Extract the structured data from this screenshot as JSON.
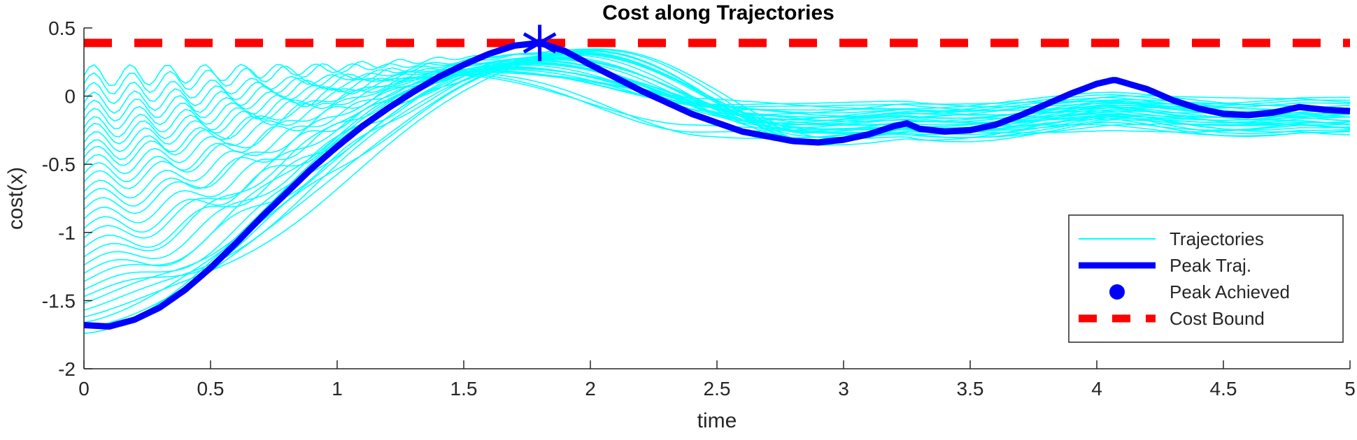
{
  "chart_data": {
    "type": "line",
    "title": "Cost along Trajectories",
    "xlabel": "time",
    "ylabel": "cost(x)",
    "xlim": [
      0,
      5
    ],
    "ylim": [
      -2,
      0.5
    ],
    "xticks": [
      0,
      0.5,
      1,
      1.5,
      2,
      2.5,
      3,
      3.5,
      4,
      4.5,
      5
    ],
    "xtick_labels": [
      "0",
      "0.5",
      "1",
      "1.5",
      "2",
      "2.5",
      "3",
      "3.5",
      "4",
      "4.5",
      "5"
    ],
    "yticks": [
      -2,
      -1.5,
      -1,
      -0.5,
      0,
      0.5
    ],
    "ytick_labels": [
      "-2",
      "-1.5",
      "-1",
      "-0.5",
      "0",
      "0.5"
    ],
    "grid": false,
    "legend_position": "bottom-right",
    "legend": [
      "Trajectories",
      "Peak Traj.",
      "Peak Achieved",
      "Cost Bound"
    ],
    "colors": {
      "trajectories": "#00ffff",
      "peak_traj": "#0000ff",
      "peak_achieved": "#0000ff",
      "cost_bound": "#ff0000"
    },
    "cost_bound": 0.39,
    "peak_achieved": {
      "x": 1.8,
      "y": 0.39
    },
    "peak_traj": {
      "x": [
        0,
        0.1,
        0.2,
        0.3,
        0.4,
        0.5,
        0.6,
        0.7,
        0.8,
        0.9,
        1.0,
        1.1,
        1.2,
        1.3,
        1.4,
        1.5,
        1.6,
        1.7,
        1.8,
        1.9,
        2.0,
        2.2,
        2.4,
        2.6,
        2.8,
        2.9,
        3.0,
        3.1,
        3.2,
        3.25,
        3.3,
        3.4,
        3.5,
        3.6,
        3.7,
        3.8,
        3.9,
        4.0,
        4.07,
        4.2,
        4.3,
        4.4,
        4.5,
        4.6,
        4.7,
        4.8,
        4.9,
        5.0
      ],
      "y": [
        -1.68,
        -1.69,
        -1.64,
        -1.55,
        -1.42,
        -1.26,
        -1.08,
        -0.89,
        -0.71,
        -0.53,
        -0.37,
        -0.22,
        -0.09,
        0.03,
        0.14,
        0.23,
        0.31,
        0.37,
        0.39,
        0.33,
        0.23,
        0.04,
        -0.13,
        -0.26,
        -0.33,
        -0.34,
        -0.32,
        -0.28,
        -0.22,
        -0.2,
        -0.24,
        -0.26,
        -0.25,
        -0.21,
        -0.14,
        -0.06,
        0.02,
        0.09,
        0.12,
        0.05,
        -0.03,
        -0.09,
        -0.13,
        -0.14,
        -0.12,
        -0.08,
        -0.1,
        -0.11
      ]
    },
    "trajectories_y_start": [
      -1.74,
      -1.7,
      -1.66,
      -1.62,
      -1.57,
      -1.52,
      -1.47,
      -1.42,
      -1.36,
      -1.3,
      -1.24,
      -1.18,
      -1.11,
      -1.04,
      -0.97,
      -0.9,
      -0.83,
      -0.76,
      -0.7,
      -0.63,
      -0.57,
      -0.51,
      -0.45,
      -0.4,
      -0.34,
      -0.28,
      -0.23,
      -0.17,
      -0.11,
      -0.05,
      0.02,
      0.09,
      0.15
    ]
  }
}
